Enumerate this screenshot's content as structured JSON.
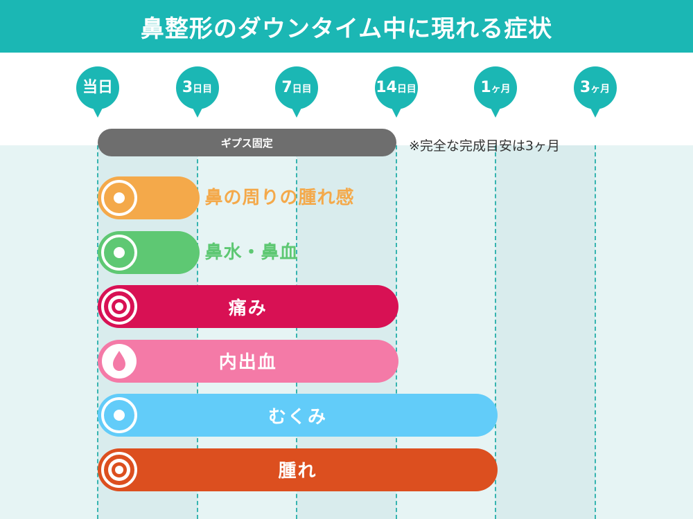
{
  "title": "鼻整形のダウンタイム中に現れる症状",
  "chart_data": {
    "type": "bar",
    "orientation": "horizontal",
    "timeline": [
      {
        "label_main": "当日",
        "label_suffix": ""
      },
      {
        "label_main": "3",
        "label_suffix": "日目"
      },
      {
        "label_main": "7",
        "label_suffix": "日目"
      },
      {
        "label_main": "14",
        "label_suffix": "日目"
      },
      {
        "label_main": "1",
        "label_suffix": "ヶ月"
      },
      {
        "label_main": "3",
        "label_suffix": "ヶ月"
      }
    ],
    "cast": {
      "label": "ギプス固定",
      "start_index": 0,
      "end_index": 3
    },
    "cast_note": "※完全な完成目安は3ヶ月",
    "series": [
      {
        "name": "鼻の周りの腫れ感",
        "start_index": 0,
        "end_index": 1,
        "color": "#f4a94a",
        "icon": "dot-ring-icon",
        "label_position": "outside"
      },
      {
        "name": "鼻水・鼻血",
        "start_index": 0,
        "end_index": 1,
        "color": "#5ec873",
        "icon": "dot-ring-icon",
        "label_position": "outside"
      },
      {
        "name": "痛み",
        "start_index": 0,
        "end_index": 3,
        "color": "#d81154",
        "icon": "target-icon",
        "label_position": "inside"
      },
      {
        "name": "内出血",
        "start_index": 0,
        "end_index": 3,
        "color": "#f47aa7",
        "icon": "droplet-icon",
        "label_position": "inside"
      },
      {
        "name": "むくみ",
        "start_index": 0,
        "end_index": 4,
        "color": "#62ccf9",
        "icon": "dot-ring-icon",
        "label_position": "inside"
      },
      {
        "name": "腫れ",
        "start_index": 0,
        "end_index": 4,
        "color": "#dc4f1f",
        "icon": "target-icon",
        "label_position": "inside"
      }
    ],
    "colors": {
      "header": "#1bb7b4",
      "marker": "#1bb7b4",
      "cast": "#6e6e6e"
    },
    "grid": true
  }
}
